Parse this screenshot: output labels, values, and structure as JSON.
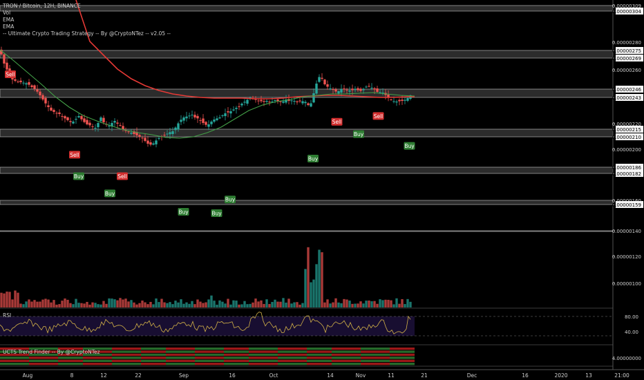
{
  "legend": {
    "symbol": "TRON / Bitcoin, 12H, BINANCE",
    "lines": [
      "Vol",
      "EMA",
      "EMA",
      "-- Ultimate Crypto Trading Strategy -- By @CryptoNTez -- v2.05 --"
    ]
  },
  "panes": {
    "rsi_label": "RSI",
    "ucts_label": "UCTS Trend Finder -- By @CryptoNTez"
  },
  "colors": {
    "background": "#000000",
    "up": "#26a69a",
    "down": "#ef5350",
    "ema_long": "#e53935",
    "ema_short": "#43a047",
    "rsi": "#d4b348",
    "rsi_band": "#1b1036",
    "zone": "#505050",
    "sell": "#d32f2f",
    "buy": "#2e7d32"
  },
  "chart_data": {
    "type": "candlestick",
    "price_axis": {
      "ticks": [
        "0.00000309",
        "0.00000304",
        "0.00000280",
        "0.00000275",
        "0.00000269",
        "0.00000260",
        "0.00000246",
        "0.00000243",
        "0.00000220",
        "0.00000215",
        "0.00000210",
        "0.00000200",
        "0.00000186",
        "0.00000182",
        "0.00000160",
        "0.00000159",
        "0.00000140",
        "0.00000120",
        "0.00000100"
      ],
      "range": [
        1e-06,
        3.15e-06
      ]
    },
    "rsi_axis": {
      "ticks": [
        "80.00",
        "40.00"
      ],
      "bands": [
        70,
        30
      ]
    },
    "ucts_axis": {
      "ticks": [
        "4.00000000"
      ]
    },
    "time_axis": [
      "Aug",
      "8",
      "12",
      "22",
      "Sep",
      "16",
      "Oct",
      "14",
      "Nov",
      "11",
      "21",
      "Dec",
      "16",
      "2020",
      "13",
      "21:00"
    ],
    "zones": [
      {
        "from": 3.04e-06,
        "to": 3.09e-06
      },
      {
        "from": 2.69e-06,
        "to": 2.75e-06
      },
      {
        "from": 2.43e-06,
        "to": 2.46e-06
      },
      {
        "from": 2.1e-06,
        "to": 2.15e-06
      },
      {
        "from": 1.82e-06,
        "to": 1.86e-06
      },
      {
        "from": 1.59e-06,
        "to": 1.6e-06
      },
      {
        "from": 1.4e-06,
        "to": 1.4e-06
      }
    ],
    "close_path": [
      [
        0,
        278
      ],
      [
        6,
        258
      ],
      [
        12,
        245
      ],
      [
        18,
        235
      ],
      [
        24,
        232
      ],
      [
        30,
        231
      ],
      [
        36,
        230
      ],
      [
        40,
        229
      ],
      [
        46,
        224
      ],
      [
        52,
        220
      ],
      [
        58,
        212
      ],
      [
        64,
        203
      ],
      [
        70,
        195
      ],
      [
        74,
        190
      ],
      [
        80,
        187
      ],
      [
        86,
        185
      ],
      [
        92,
        180
      ],
      [
        98,
        176
      ],
      [
        104,
        172
      ],
      [
        108,
        176
      ],
      [
        114,
        182
      ],
      [
        120,
        175
      ],
      [
        126,
        170
      ],
      [
        132,
        168
      ],
      [
        138,
        165
      ],
      [
        142,
        172
      ],
      [
        146,
        180
      ],
      [
        150,
        173
      ],
      [
        154,
        170
      ],
      [
        158,
        168
      ],
      [
        162,
        172
      ],
      [
        166,
        175
      ],
      [
        170,
        171
      ],
      [
        174,
        168
      ],
      [
        178,
        163
      ],
      [
        184,
        160
      ],
      [
        190,
        158
      ],
      [
        196,
        155
      ],
      [
        202,
        152
      ],
      [
        206,
        150
      ],
      [
        210,
        146
      ],
      [
        214,
        142
      ],
      [
        220,
        140
      ],
      [
        224,
        145
      ],
      [
        230,
        150
      ],
      [
        236,
        153
      ],
      [
        240,
        155
      ],
      [
        244,
        158
      ],
      [
        250,
        160
      ],
      [
        256,
        168
      ],
      [
        260,
        175
      ],
      [
        266,
        180
      ],
      [
        272,
        182
      ],
      [
        278,
        184
      ],
      [
        282,
        180
      ],
      [
        288,
        178
      ],
      [
        294,
        172
      ],
      [
        300,
        168
      ],
      [
        304,
        172
      ],
      [
        308,
        176
      ],
      [
        312,
        178
      ],
      [
        318,
        180
      ],
      [
        322,
        183
      ],
      [
        326,
        186
      ],
      [
        332,
        188
      ],
      [
        336,
        190
      ],
      [
        340,
        193
      ],
      [
        346,
        196
      ],
      [
        350,
        200
      ],
      [
        356,
        204
      ],
      [
        360,
        207
      ],
      [
        364,
        210
      ],
      [
        368,
        208
      ],
      [
        372,
        203
      ],
      [
        376,
        205
      ],
      [
        380,
        202
      ],
      [
        386,
        204
      ],
      [
        392,
        202
      ],
      [
        398,
        205
      ],
      [
        404,
        203
      ],
      [
        408,
        202
      ],
      [
        414,
        206
      ],
      [
        418,
        204
      ],
      [
        424,
        205
      ],
      [
        430,
        202
      ],
      [
        436,
        204
      ],
      [
        440,
        203
      ],
      [
        444,
        202
      ],
      [
        448,
        194
      ],
      [
        452,
        207
      ],
      [
        456,
        223
      ],
      [
        460,
        235
      ],
      [
        464,
        242
      ],
      [
        468,
        230
      ],
      [
        472,
        226
      ],
      [
        476,
        223
      ],
      [
        480,
        221
      ],
      [
        484,
        219
      ],
      [
        488,
        216
      ],
      [
        492,
        220
      ],
      [
        496,
        222
      ],
      [
        500,
        219
      ],
      [
        504,
        220
      ],
      [
        508,
        218
      ],
      [
        512,
        221
      ],
      [
        516,
        222
      ],
      [
        520,
        217
      ],
      [
        524,
        220
      ],
      [
        528,
        223
      ],
      [
        532,
        226
      ],
      [
        536,
        224
      ],
      [
        540,
        222
      ],
      [
        544,
        219
      ],
      [
        548,
        215
      ],
      [
        552,
        218
      ],
      [
        556,
        214
      ],
      [
        560,
        211
      ],
      [
        564,
        207
      ],
      [
        568,
        205
      ],
      [
        572,
        202
      ],
      [
        576,
        204
      ],
      [
        580,
        203
      ],
      [
        584,
        205
      ],
      [
        588,
        206
      ],
      [
        592,
        210
      ],
      [
        596,
        214
      ]
    ],
    "ema_long_path": [
      [
        110,
        315
      ],
      [
        130,
        290
      ],
      [
        150,
        270
      ],
      [
        170,
        250
      ],
      [
        190,
        236
      ],
      [
        210,
        226
      ],
      [
        230,
        219
      ],
      [
        250,
        214
      ],
      [
        270,
        211
      ],
      [
        290,
        209
      ],
      [
        310,
        208
      ],
      [
        330,
        208
      ],
      [
        350,
        208
      ],
      [
        370,
        207
      ],
      [
        390,
        207
      ],
      [
        410,
        208
      ],
      [
        430,
        210
      ],
      [
        450,
        211
      ],
      [
        470,
        212
      ],
      [
        490,
        212
      ],
      [
        510,
        211
      ],
      [
        530,
        210
      ],
      [
        550,
        209
      ],
      [
        570,
        209
      ],
      [
        590,
        210
      ],
      [
        600,
        210
      ]
    ],
    "ema_short_path": [
      [
        0,
        278
      ],
      [
        20,
        262
      ],
      [
        40,
        245
      ],
      [
        60,
        228
      ],
      [
        80,
        210
      ],
      [
        100,
        195
      ],
      [
        120,
        183
      ],
      [
        140,
        175
      ],
      [
        160,
        168
      ],
      [
        180,
        162
      ],
      [
        200,
        158
      ],
      [
        220,
        155
      ],
      [
        240,
        151
      ],
      [
        260,
        150
      ],
      [
        280,
        152
      ],
      [
        300,
        158
      ],
      [
        320,
        166
      ],
      [
        340,
        178
      ],
      [
        360,
        190
      ],
      [
        380,
        198
      ],
      [
        400,
        203
      ],
      [
        420,
        206
      ],
      [
        440,
        210
      ],
      [
        460,
        212
      ],
      [
        480,
        214
      ],
      [
        500,
        214
      ],
      [
        520,
        215
      ],
      [
        540,
        216
      ],
      [
        560,
        214
      ],
      [
        580,
        212
      ],
      [
        600,
        211
      ]
    ],
    "signals": [
      {
        "type": "Sell",
        "bar": 10,
        "price": 2.57e-06
      },
      {
        "type": "Sell",
        "bar": 72,
        "price": 1.96e-06
      },
      {
        "type": "Buy",
        "bar": 76,
        "price": 1.8e-06
      },
      {
        "type": "Buy",
        "bar": 106,
        "price": 1.66e-06
      },
      {
        "type": "Sell",
        "bar": 118,
        "price": 1.8e-06
      },
      {
        "type": "Buy",
        "bar": 177,
        "price": 1.54e-06
      },
      {
        "type": "Buy",
        "bar": 209,
        "price": 1.53e-06
      },
      {
        "type": "Buy",
        "bar": 222,
        "price": 1.61e-06
      },
      {
        "type": "Buy",
        "bar": 302,
        "price": 1.93e-06
      },
      {
        "type": "Sell",
        "bar": 325,
        "price": 2.22e-06
      },
      {
        "type": "Buy",
        "bar": 346,
        "price": 2.12e-06
      },
      {
        "type": "Sell",
        "bar": 365,
        "price": 2.27e-06
      },
      {
        "type": "Buy",
        "bar": 395,
        "price": 2.03e-06
      }
    ]
  }
}
